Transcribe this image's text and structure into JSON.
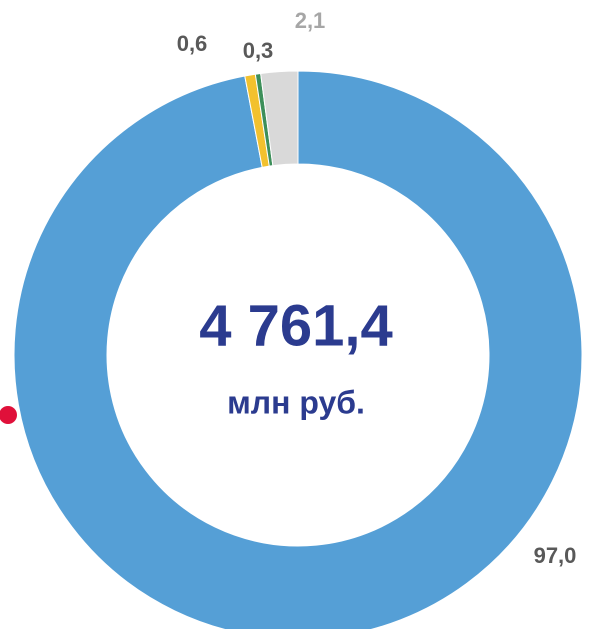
{
  "chart_data": {
    "type": "pie",
    "values": [
      97.0,
      0.6,
      0.3,
      2.1
    ],
    "value_labels": [
      "97,0",
      "0,6",
      "0,3",
      "2,1"
    ],
    "colors": [
      "#559fd6",
      "#f2c12e",
      "#3d8f5a",
      "#d9d9d9"
    ],
    "center_value": "4 761,4",
    "center_unit": "млн руб."
  }
}
